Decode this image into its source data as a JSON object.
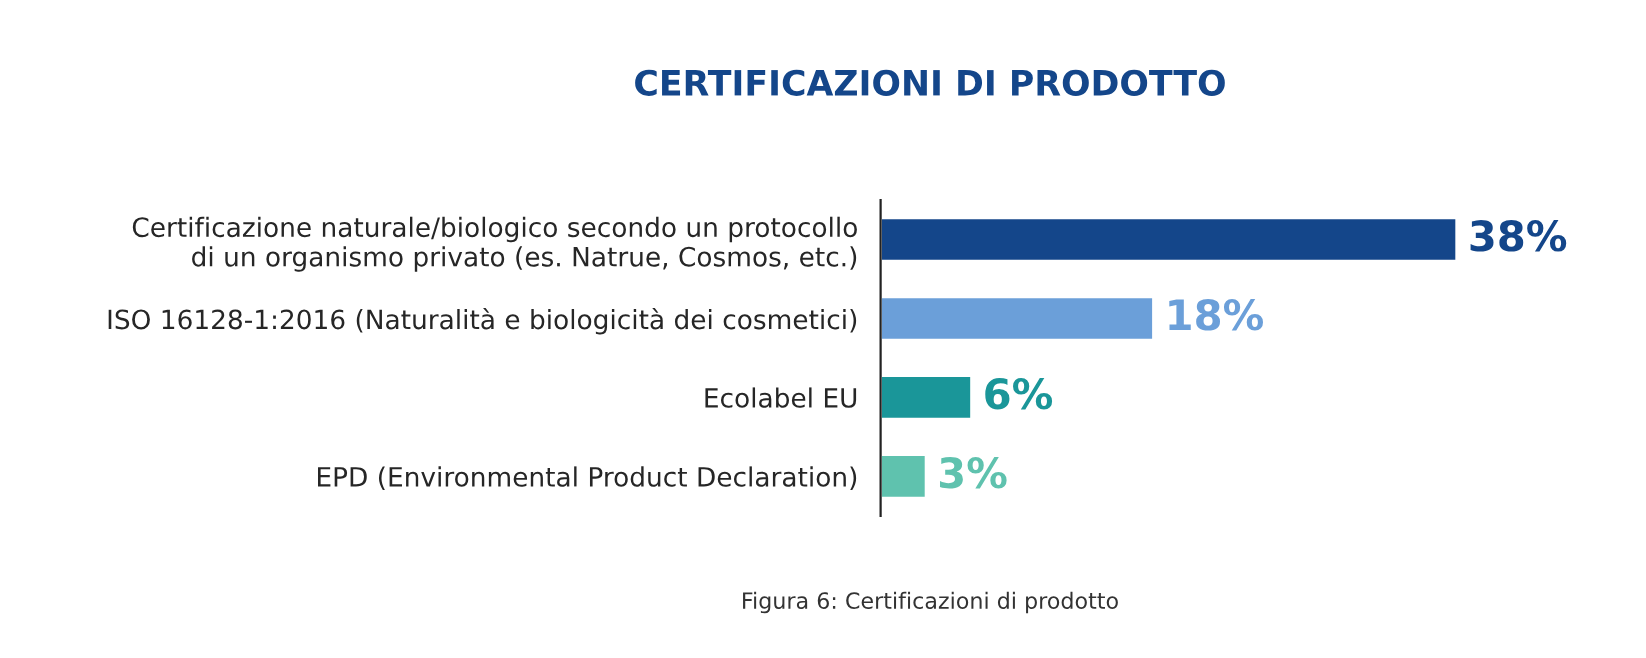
{
  "chart_data": {
    "type": "bar",
    "orientation": "horizontal",
    "title": "CERTIFICAZIONI DI PRODOTTO",
    "categories": [
      "Certificazione naturale/biologico secondo un protocollo\ndi un organismo privato (es. Natrue, Cosmos, etc.)",
      "ISO 16128-1:2016 (Naturalità e biologicità dei cosmetici)",
      "Ecolabel EU",
      "EPD (Environmental Product Declaration)"
    ],
    "values": [
      38,
      18,
      6,
      3
    ],
    "colors": [
      "#14468a",
      "#6b9fd9",
      "#1a9699",
      "#5fc2ae"
    ],
    "value_labels": [
      "38%",
      "18%",
      "6%",
      "3%"
    ],
    "annotations": [
      "Figura 6: Certificazioni di prodotto"
    ]
  }
}
